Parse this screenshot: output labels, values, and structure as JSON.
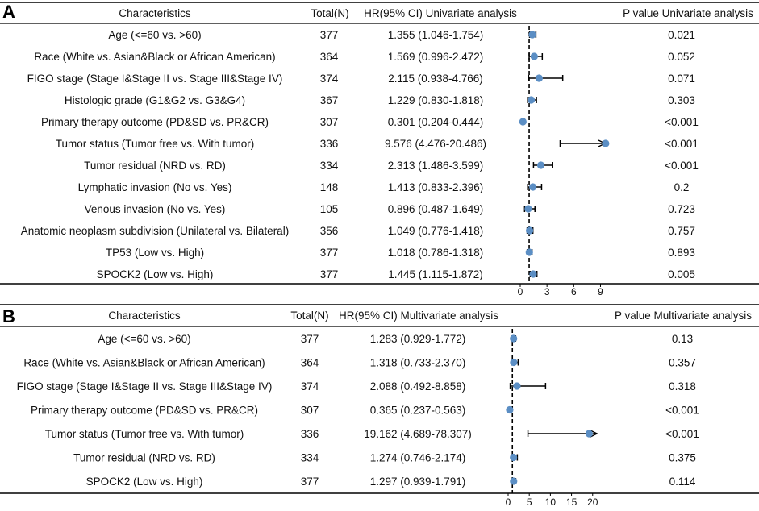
{
  "figure": {
    "panels": [
      "A",
      "B"
    ]
  },
  "chart_data": [
    {
      "panel": "A",
      "type": "forest",
      "headers": {
        "characteristics": "Characteristics",
        "total": "Total(N)",
        "hr": "HR(95% CI) Univariate analysis",
        "p": "P value Univariate analysis"
      },
      "rows": [
        {
          "label": "Age (<=60 vs. >60)",
          "n": "377",
          "hr_text": "1.355 (1.046-1.754)",
          "hr": 1.355,
          "lo": 1.046,
          "hi": 1.754,
          "p": "0.021"
        },
        {
          "label": "Race (White vs. Asian&Black or African American)",
          "n": "364",
          "hr_text": "1.569 (0.996-2.472)",
          "hr": 1.569,
          "lo": 0.996,
          "hi": 2.472,
          "p": "0.052"
        },
        {
          "label": "FIGO stage (Stage I&Stage II vs. Stage III&Stage IV)",
          "n": "374",
          "hr_text": "2.115 (0.938-4.766)",
          "hr": 2.115,
          "lo": 0.938,
          "hi": 4.766,
          "p": "0.071"
        },
        {
          "label": "Histologic grade (G1&G2 vs. G3&G4)",
          "n": "367",
          "hr_text": "1.229 (0.830-1.818)",
          "hr": 1.229,
          "lo": 0.83,
          "hi": 1.818,
          "p": "0.303"
        },
        {
          "label": "Primary therapy outcome (PD&SD vs. PR&CR)",
          "n": "307",
          "hr_text": "0.301 (0.204-0.444)",
          "hr": 0.301,
          "lo": 0.204,
          "hi": 0.444,
          "p": "<0.001"
        },
        {
          "label": "Tumor status (Tumor free vs. With tumor)",
          "n": "336",
          "hr_text": "9.576 (4.476-20.486)",
          "hr": 9.576,
          "lo": 4.476,
          "hi": 20.486,
          "p": "<0.001",
          "arrow": true
        },
        {
          "label": "Tumor residual (NRD vs. RD)",
          "n": "334",
          "hr_text": "2.313 (1.486-3.599)",
          "hr": 2.313,
          "lo": 1.486,
          "hi": 3.599,
          "p": "<0.001"
        },
        {
          "label": "Lymphatic invasion (No vs. Yes)",
          "n": "148",
          "hr_text": "1.413 (0.833-2.396)",
          "hr": 1.413,
          "lo": 0.833,
          "hi": 2.396,
          "p": "0.2"
        },
        {
          "label": "Venous invasion (No vs. Yes)",
          "n": "105",
          "hr_text": "0.896 (0.487-1.649)",
          "hr": 0.896,
          "lo": 0.487,
          "hi": 1.649,
          "p": "0.723"
        },
        {
          "label": "Anatomic neoplasm subdivision (Unilateral vs. Bilateral)",
          "n": "356",
          "hr_text": "1.049 (0.776-1.418)",
          "hr": 1.049,
          "lo": 0.776,
          "hi": 1.418,
          "p": "0.757"
        },
        {
          "label": "TP53 (Low vs. High)",
          "n": "377",
          "hr_text": "1.018 (0.786-1.318)",
          "hr": 1.018,
          "lo": 0.786,
          "hi": 1.318,
          "p": "0.893"
        },
        {
          "label": "SPOCK2 (Low vs. High)",
          "n": "377",
          "hr_text": "1.445 (1.115-1.872)",
          "hr": 1.445,
          "lo": 1.115,
          "hi": 1.872,
          "p": "0.005"
        }
      ],
      "xaxis": {
        "ticks": [
          0,
          3,
          6,
          9
        ],
        "range": [
          0,
          9.5
        ],
        "reference_line": 1
      }
    },
    {
      "panel": "B",
      "type": "forest",
      "headers": {
        "characteristics": "Characteristics",
        "total": "Total(N)",
        "hr": "HR(95% CI) Multivariate analysis",
        "p": "P value Multivariate analysis"
      },
      "rows": [
        {
          "label": "Age (<=60 vs. >60)",
          "n": "377",
          "hr_text": "1.283 (0.929-1.772)",
          "hr": 1.283,
          "lo": 0.929,
          "hi": 1.772,
          "p": "0.13"
        },
        {
          "label": "Race (White vs. Asian&Black or African American)",
          "n": "364",
          "hr_text": "1.318 (0.733-2.370)",
          "hr": 1.318,
          "lo": 0.733,
          "hi": 2.37,
          "p": "0.357"
        },
        {
          "label": "FIGO stage (Stage I&Stage II vs. Stage III&Stage IV)",
          "n": "374",
          "hr_text": "2.088 (0.492-8.858)",
          "hr": 2.088,
          "lo": 0.492,
          "hi": 8.858,
          "p": "0.318"
        },
        {
          "label": "Primary therapy outcome (PD&SD vs. PR&CR)",
          "n": "307",
          "hr_text": "0.365 (0.237-0.563)",
          "hr": 0.365,
          "lo": 0.237,
          "hi": 0.563,
          "p": "<0.001"
        },
        {
          "label": "Tumor status (Tumor free vs. With tumor)",
          "n": "336",
          "hr_text": "19.162 (4.689-78.307)",
          "hr": 19.162,
          "lo": 4.689,
          "hi": 78.307,
          "p": "<0.001",
          "arrow": true
        },
        {
          "label": "Tumor residual (NRD vs. RD)",
          "n": "334",
          "hr_text": "1.274 (0.746-2.174)",
          "hr": 1.274,
          "lo": 0.746,
          "hi": 2.174,
          "p": "0.375"
        },
        {
          "label": "SPOCK2 (Low vs. High)",
          "n": "377",
          "hr_text": "1.297 (0.939-1.791)",
          "hr": 1.297,
          "lo": 0.939,
          "hi": 1.791,
          "p": "0.114"
        }
      ],
      "xaxis": {
        "ticks": [
          0,
          5,
          10,
          15,
          20
        ],
        "range": [
          0,
          21
        ],
        "reference_line": 1
      }
    }
  ],
  "colors": {
    "point": "#5b8ec4",
    "line": "#000000",
    "text": "#111111"
  }
}
